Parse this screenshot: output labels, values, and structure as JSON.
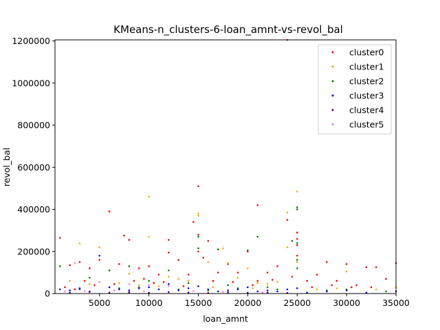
{
  "chart_data": {
    "type": "scatter",
    "title": "KMeans-n_clusters-6-loan_amnt-vs-revol_bal",
    "xlabel": "loan_amnt",
    "ylabel": "revol_bal",
    "xlim": [
      500,
      35000
    ],
    "ylim": [
      0,
      1205000
    ],
    "x_ticks": [
      5000,
      10000,
      15000,
      20000,
      25000,
      30000,
      35000
    ],
    "x_tick_labels": [
      "5000",
      "10000",
      "15000",
      "20000",
      "25000",
      "30000",
      "35000"
    ],
    "y_ticks": [
      0,
      200000,
      400000,
      600000,
      800000,
      1000000,
      1200000
    ],
    "y_tick_labels": [
      "0",
      "200000",
      "400000",
      "600000",
      "800000",
      "1000000",
      "1200000"
    ],
    "grid": false,
    "legend_position": "top-right",
    "series": [
      {
        "name": "cluster0",
        "color": "#ff0000",
        "points": [
          [
            1000,
            265000
          ],
          [
            2000,
            135000
          ],
          [
            3000,
            150000
          ],
          [
            4000,
            120000
          ],
          [
            5000,
            160000
          ],
          [
            6000,
            390000
          ],
          [
            7000,
            140000
          ],
          [
            7500,
            275000
          ],
          [
            8000,
            255000
          ],
          [
            9000,
            120000
          ],
          [
            10000,
            130000
          ],
          [
            11000,
            90000
          ],
          [
            12000,
            255000
          ],
          [
            12000,
            195000
          ],
          [
            13000,
            160000
          ],
          [
            14000,
            90000
          ],
          [
            14500,
            340000
          ],
          [
            15000,
            510000
          ],
          [
            15000,
            280000
          ],
          [
            15000,
            200000
          ],
          [
            15500,
            170000
          ],
          [
            16000,
            250000
          ],
          [
            17000,
            100000
          ],
          [
            18000,
            140000
          ],
          [
            19000,
            100000
          ],
          [
            20000,
            200000
          ],
          [
            21000,
            420000
          ],
          [
            21000,
            60000
          ],
          [
            22000,
            100000
          ],
          [
            23000,
            130000
          ],
          [
            24000,
            350000
          ],
          [
            24000,
            1205000
          ],
          [
            25000,
            290000
          ],
          [
            25000,
            260000
          ],
          [
            25000,
            230000
          ],
          [
            25000,
            180000
          ],
          [
            26000,
            60000
          ],
          [
            27000,
            90000
          ],
          [
            28000,
            150000
          ],
          [
            29000,
            60000
          ],
          [
            30000,
            140000
          ],
          [
            31000,
            40000
          ],
          [
            32000,
            125000
          ],
          [
            33000,
            125000
          ],
          [
            34000,
            70000
          ],
          [
            35000,
            145000
          ],
          [
            3500,
            60000
          ],
          [
            6500,
            45000
          ],
          [
            9500,
            70000
          ],
          [
            11500,
            55000
          ],
          [
            13500,
            35000
          ],
          [
            16500,
            60000
          ],
          [
            18500,
            55000
          ],
          [
            20500,
            40000
          ],
          [
            22500,
            65000
          ],
          [
            24500,
            80000
          ],
          [
            26500,
            30000
          ],
          [
            28500,
            40000
          ],
          [
            30500,
            30000
          ],
          [
            32500,
            30000
          ],
          [
            1500,
            30000
          ],
          [
            2500,
            20000
          ],
          [
            4500,
            40000
          ],
          [
            8500,
            60000
          ],
          [
            10500,
            50000
          ]
        ]
      },
      {
        "name": "cluster1",
        "color": "#ffa500",
        "points": [
          [
            3000,
            238000
          ],
          [
            5000,
            220000
          ],
          [
            10000,
            460000
          ],
          [
            10000,
            270000
          ],
          [
            15000,
            380000
          ],
          [
            15000,
            370000
          ],
          [
            16000,
            150000
          ],
          [
            17500,
            215000
          ],
          [
            18000,
            145000
          ],
          [
            20000,
            120000
          ],
          [
            24000,
            385000
          ],
          [
            24000,
            220000
          ],
          [
            25000,
            485000
          ],
          [
            25000,
            150000
          ],
          [
            30000,
            105000
          ],
          [
            6000,
            110000
          ],
          [
            8000,
            95000
          ],
          [
            12000,
            80000
          ],
          [
            13000,
            70000
          ],
          [
            14000,
            60000
          ],
          [
            19000,
            75000
          ],
          [
            21000,
            50000
          ],
          [
            22000,
            45000
          ],
          [
            23000,
            55000
          ],
          [
            2000,
            60000
          ],
          [
            4000,
            45000
          ],
          [
            7000,
            50000
          ],
          [
            9000,
            40000
          ],
          [
            11000,
            35000
          ],
          [
            27000,
            20000
          ],
          [
            29000,
            25000
          ],
          [
            33000,
            20000
          ],
          [
            35000,
            30000
          ],
          [
            16500,
            30000
          ],
          [
            20500,
            25000
          ]
        ]
      },
      {
        "name": "cluster2",
        "color": "#008000",
        "points": [
          [
            1000,
            130000
          ],
          [
            4000,
            75000
          ],
          [
            6000,
            110000
          ],
          [
            8000,
            130000
          ],
          [
            12000,
            110000
          ],
          [
            15000,
            270000
          ],
          [
            15000,
            215000
          ],
          [
            17000,
            210000
          ],
          [
            20000,
            205000
          ],
          [
            21000,
            270000
          ],
          [
            24500,
            250000
          ],
          [
            25000,
            410000
          ],
          [
            25000,
            400000
          ],
          [
            25000,
            240000
          ],
          [
            25000,
            160000
          ],
          [
            25000,
            120000
          ],
          [
            10000,
            60000
          ],
          [
            14000,
            50000
          ],
          [
            18000,
            40000
          ],
          [
            22000,
            30000
          ],
          [
            3000,
            20000
          ],
          [
            7000,
            25000
          ],
          [
            9000,
            30000
          ],
          [
            13000,
            20000
          ],
          [
            16000,
            15000
          ],
          [
            19000,
            25000
          ],
          [
            23000,
            20000
          ],
          [
            28000,
            15000
          ],
          [
            30000,
            20000
          ],
          [
            34000,
            10000
          ]
        ]
      },
      {
        "name": "cluster3",
        "color": "#0000ff",
        "points": [
          [
            5000,
            180000
          ],
          [
            1000,
            20000
          ],
          [
            2000,
            15000
          ],
          [
            3000,
            25000
          ],
          [
            4000,
            10000
          ],
          [
            6000,
            30000
          ],
          [
            7000,
            20000
          ],
          [
            8000,
            15000
          ],
          [
            9000,
            25000
          ],
          [
            10000,
            30000
          ],
          [
            11000,
            20000
          ],
          [
            12000,
            45000
          ],
          [
            13000,
            15000
          ],
          [
            14000,
            25000
          ],
          [
            15000,
            35000
          ],
          [
            16000,
            20000
          ],
          [
            17000,
            10000
          ],
          [
            18000,
            15000
          ],
          [
            19000,
            20000
          ],
          [
            20000,
            30000
          ],
          [
            21000,
            10000
          ],
          [
            22000,
            15000
          ],
          [
            23000,
            10000
          ],
          [
            24000,
            20000
          ],
          [
            25000,
            25000
          ],
          [
            26000,
            5000
          ],
          [
            28000,
            10000
          ],
          [
            30000,
            15000
          ],
          [
            32000,
            5000
          ],
          [
            35000,
            10000
          ]
        ]
      },
      {
        "name": "cluster4",
        "color": "#4b0082",
        "points": [
          [
            2000,
            5000
          ],
          [
            4000,
            8000
          ],
          [
            6000,
            5000
          ],
          [
            8000,
            6000
          ],
          [
            10000,
            4000
          ],
          [
            12000,
            7000
          ],
          [
            14000,
            5000
          ],
          [
            16000,
            3000
          ],
          [
            18000,
            6000
          ],
          [
            20000,
            4000
          ],
          [
            22000,
            5000
          ],
          [
            24000,
            3000
          ]
        ]
      },
      {
        "name": "cluster5",
        "color": "#ee82ee",
        "points": [
          [
            2500,
            145000
          ],
          [
            5000,
            55000
          ],
          [
            8000,
            45000
          ],
          [
            10000,
            40000
          ],
          [
            12000,
            35000
          ],
          [
            1500,
            10000
          ],
          [
            3500,
            12000
          ],
          [
            6500,
            15000
          ],
          [
            9500,
            10000
          ],
          [
            14500,
            12000
          ],
          [
            17500,
            8000
          ],
          [
            21500,
            6000
          ]
        ]
      }
    ]
  }
}
